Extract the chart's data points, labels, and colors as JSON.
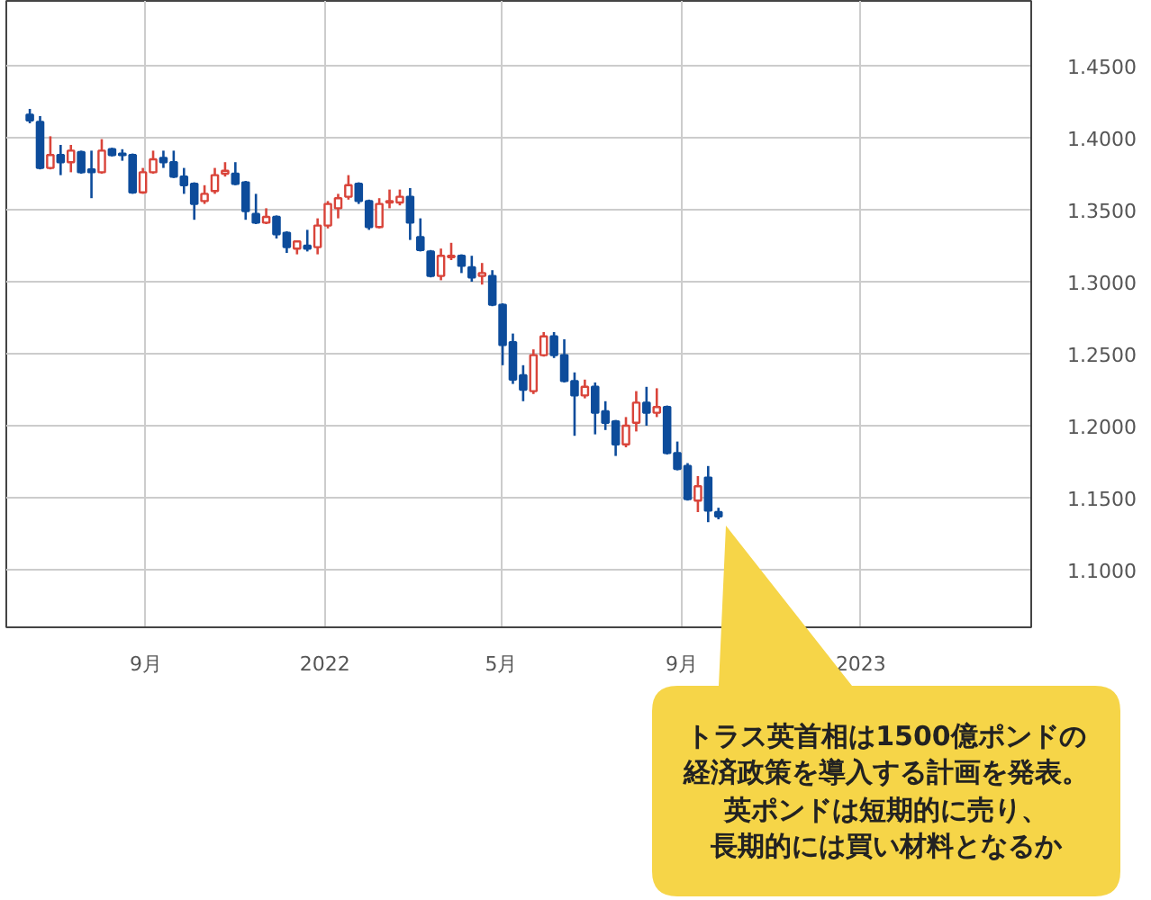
{
  "chart_data": {
    "type": "candlestick",
    "x": [
      "2021-06-14",
      "2021-06-21",
      "2021-06-28",
      "2021-07-05",
      "2021-07-12",
      "2021-07-19",
      "2021-07-26",
      "2021-08-02",
      "2021-08-09",
      "2021-08-16",
      "2021-08-23",
      "2021-08-30",
      "2021-09-06",
      "2021-09-13",
      "2021-09-20",
      "2021-09-27",
      "2021-10-04",
      "2021-10-11",
      "2021-10-18",
      "2021-10-25",
      "2021-11-01",
      "2021-11-08",
      "2021-11-15",
      "2021-11-22",
      "2021-11-29",
      "2021-12-06",
      "2021-12-13",
      "2021-12-20",
      "2021-12-27",
      "2022-01-03",
      "2022-01-10",
      "2022-01-17",
      "2022-01-24",
      "2022-01-31",
      "2022-02-07",
      "2022-02-14",
      "2022-02-21",
      "2022-02-28",
      "2022-03-07",
      "2022-03-14",
      "2022-03-21",
      "2022-03-28",
      "2022-04-04",
      "2022-04-11",
      "2022-04-18",
      "2022-04-25",
      "2022-05-02",
      "2022-05-09",
      "2022-05-16",
      "2022-05-23",
      "2022-05-30",
      "2022-06-06",
      "2022-06-13",
      "2022-06-20",
      "2022-06-27",
      "2022-07-04",
      "2022-07-11",
      "2022-07-18",
      "2022-07-25",
      "2022-08-01",
      "2022-08-08",
      "2022-08-15",
      "2022-08-22",
      "2022-08-29",
      "2022-09-05",
      "2022-09-12",
      "2022-09-19",
      "2022-09-26"
    ],
    "ohlc": [
      [
        1.416,
        1.42,
        1.41,
        1.412
      ],
      [
        1.411,
        1.415,
        1.378,
        1.379
      ],
      [
        1.379,
        1.401,
        1.378,
        1.388
      ],
      [
        1.388,
        1.395,
        1.374,
        1.383
      ],
      [
        1.383,
        1.395,
        1.376,
        1.391
      ],
      [
        1.39,
        1.391,
        1.375,
        1.376
      ],
      [
        1.378,
        1.391,
        1.358,
        1.376
      ],
      [
        1.376,
        1.399,
        1.375,
        1.391
      ],
      [
        1.392,
        1.393,
        1.387,
        1.388
      ],
      [
        1.389,
        1.392,
        1.384,
        1.388
      ],
      [
        1.388,
        1.389,
        1.361,
        1.362
      ],
      [
        1.362,
        1.379,
        1.361,
        1.376
      ],
      [
        1.376,
        1.391,
        1.375,
        1.385
      ],
      [
        1.386,
        1.391,
        1.379,
        1.383
      ],
      [
        1.383,
        1.391,
        1.372,
        1.373
      ],
      [
        1.373,
        1.379,
        1.361,
        1.367
      ],
      [
        1.368,
        1.369,
        1.343,
        1.354
      ],
      [
        1.356,
        1.367,
        1.354,
        1.361
      ],
      [
        1.363,
        1.379,
        1.361,
        1.374
      ],
      [
        1.375,
        1.383,
        1.373,
        1.377
      ],
      [
        1.375,
        1.383,
        1.367,
        1.368
      ],
      [
        1.369,
        1.37,
        1.343,
        1.349
      ],
      [
        1.347,
        1.361,
        1.34,
        1.341
      ],
      [
        1.341,
        1.351,
        1.34,
        1.345
      ],
      [
        1.345,
        1.346,
        1.33,
        1.333
      ],
      [
        1.334,
        1.335,
        1.32,
        1.324
      ],
      [
        1.323,
        1.328,
        1.319,
        1.328
      ],
      [
        1.325,
        1.336,
        1.321,
        1.323
      ],
      [
        1.324,
        1.344,
        1.319,
        1.339
      ],
      [
        1.339,
        1.356,
        1.337,
        1.354
      ],
      [
        1.351,
        1.361,
        1.344,
        1.358
      ],
      [
        1.359,
        1.374,
        1.357,
        1.367
      ],
      [
        1.368,
        1.369,
        1.354,
        1.356
      ],
      [
        1.356,
        1.357,
        1.336,
        1.338
      ],
      [
        1.338,
        1.358,
        1.337,
        1.354
      ],
      [
        1.355,
        1.364,
        1.351,
        1.356
      ],
      [
        1.355,
        1.364,
        1.353,
        1.359
      ],
      [
        1.359,
        1.365,
        1.329,
        1.341
      ],
      [
        1.331,
        1.344,
        1.321,
        1.322
      ],
      [
        1.321,
        1.322,
        1.303,
        1.304
      ],
      [
        1.304,
        1.323,
        1.301,
        1.318
      ],
      [
        1.317,
        1.327,
        1.315,
        1.318
      ],
      [
        1.318,
        1.319,
        1.306,
        1.311
      ],
      [
        1.31,
        1.318,
        1.3,
        1.303
      ],
      [
        1.304,
        1.313,
        1.298,
        1.306
      ],
      [
        1.304,
        1.308,
        1.283,
        1.284
      ],
      [
        1.284,
        1.285,
        1.242,
        1.256
      ],
      [
        1.258,
        1.264,
        1.229,
        1.232
      ],
      [
        1.235,
        1.242,
        1.217,
        1.225
      ],
      [
        1.224,
        1.253,
        1.222,
        1.249
      ],
      [
        1.249,
        1.265,
        1.248,
        1.262
      ],
      [
        1.262,
        1.265,
        1.247,
        1.249
      ],
      [
        1.249,
        1.26,
        1.23,
        1.231
      ],
      [
        1.231,
        1.237,
        1.193,
        1.221
      ],
      [
        1.221,
        1.232,
        1.219,
        1.227
      ],
      [
        1.227,
        1.23,
        1.194,
        1.209
      ],
      [
        1.21,
        1.217,
        1.197,
        1.202
      ],
      [
        1.203,
        1.204,
        1.179,
        1.187
      ],
      [
        1.187,
        1.206,
        1.185,
        1.2
      ],
      [
        1.202,
        1.224,
        1.196,
        1.216
      ],
      [
        1.216,
        1.227,
        1.2,
        1.209
      ],
      [
        1.209,
        1.226,
        1.206,
        1.213
      ],
      [
        1.213,
        1.214,
        1.18,
        1.181
      ],
      [
        1.181,
        1.189,
        1.169,
        1.17
      ],
      [
        1.172,
        1.174,
        1.148,
        1.149
      ],
      [
        1.148,
        1.165,
        1.14,
        1.158
      ],
      [
        1.164,
        1.172,
        1.133,
        1.141
      ],
      [
        1.14,
        1.143,
        1.135,
        1.137
      ]
    ],
    "colors": [
      "#0d4c9b",
      "#0d4c9b",
      "#d9443a",
      "#0d4c9b",
      "#d9443a",
      "#0d4c9b",
      "#0d4c9b",
      "#d9443a",
      "#0d4c9b",
      "#0d4c9b",
      "#0d4c9b",
      "#d9443a",
      "#d9443a",
      "#0d4c9b",
      "#0d4c9b",
      "#0d4c9b",
      "#0d4c9b",
      "#d9443a",
      "#d9443a",
      "#d9443a",
      "#0d4c9b",
      "#0d4c9b",
      "#0d4c9b",
      "#d9443a",
      "#0d4c9b",
      "#0d4c9b",
      "#d9443a",
      "#0d4c9b",
      "#d9443a",
      "#d9443a",
      "#d9443a",
      "#d9443a",
      "#0d4c9b",
      "#0d4c9b",
      "#d9443a",
      "#d9443a",
      "#d9443a",
      "#0d4c9b",
      "#0d4c9b",
      "#0d4c9b",
      "#d9443a",
      "#d9443a",
      "#0d4c9b",
      "#0d4c9b",
      "#d9443a",
      "#0d4c9b",
      "#0d4c9b",
      "#0d4c9b",
      "#0d4c9b",
      "#d9443a",
      "#d9443a",
      "#0d4c9b",
      "#0d4c9b",
      "#0d4c9b",
      "#d9443a",
      "#0d4c9b",
      "#0d4c9b",
      "#0d4c9b",
      "#d9443a",
      "#d9443a",
      "#0d4c9b",
      "#d9443a",
      "#0d4c9b",
      "#0d4c9b",
      "#0d4c9b",
      "#d9443a",
      "#0d4c9b",
      "#0d4c9b"
    ],
    "xlim": [
      "2021-05-29",
      "2023-04-27"
    ],
    "xticks": [
      {
        "value": "2021-09-01",
        "label": "9月"
      },
      {
        "value": "2022-01-01",
        "label": "2022"
      },
      {
        "value": "2022-05-01",
        "label": "5月"
      },
      {
        "value": "2022-09-01",
        "label": "9月"
      },
      {
        "value": "2023-01-01",
        "label": "2023"
      }
    ],
    "ylim": [
      1.06,
      1.495
    ],
    "yticks": [
      {
        "value": 1.1,
        "label": "1.1000"
      },
      {
        "value": 1.15,
        "label": "1.1500"
      },
      {
        "value": 1.2,
        "label": "1.2000"
      },
      {
        "value": 1.25,
        "label": "1.2500"
      },
      {
        "value": 1.3,
        "label": "1.3000"
      },
      {
        "value": 1.35,
        "label": "1.3500"
      },
      {
        "value": 1.4,
        "label": "1.4000"
      },
      {
        "value": 1.45,
        "label": "1.4500"
      }
    ],
    "grid": true,
    "annotations": [
      "トラス英首相は1500億ポンドの",
      "経済政策を導入する計画を発表。",
      "英ポンドは短期的に売り、",
      "長期的には買い材料となるか"
    ]
  }
}
